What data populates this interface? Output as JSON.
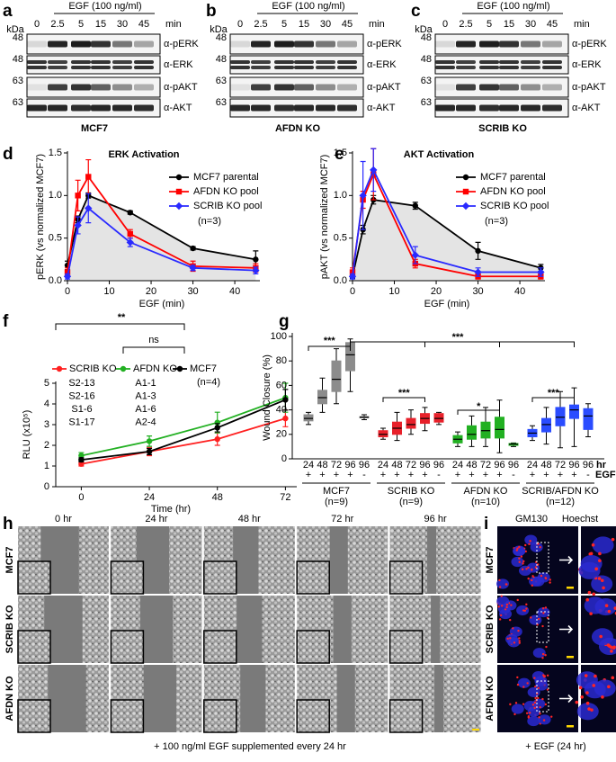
{
  "blots": [
    {
      "panel": "a",
      "treatment": "EGF (100 ng/ml)",
      "mw_unit": "kDa",
      "times": [
        "0",
        "2.5",
        "5",
        "15",
        "30",
        "45"
      ],
      "time_unit": "min",
      "markers": [
        "48",
        "48",
        "63",
        "63"
      ],
      "antibodies": [
        "α-pERK",
        "α-ERK",
        "α-pAKT",
        "α-AKT"
      ],
      "cell_line": "MCF7"
    },
    {
      "panel": "b",
      "treatment": "EGF (100 ng/ml)",
      "mw_unit": "kDa",
      "times": [
        "0",
        "2.5",
        "5",
        "15",
        "30",
        "45"
      ],
      "time_unit": "min",
      "markers": [
        "48",
        "48",
        "63",
        "63"
      ],
      "antibodies": [
        "α-pERK",
        "α-ERK",
        "α-pAKT",
        "α-AKT"
      ],
      "cell_line": "AFDN KO"
    },
    {
      "panel": "c",
      "treatment": "EGF (100 ng/ml)",
      "mw_unit": "kDa",
      "times": [
        "0",
        "2.5",
        "5",
        "15",
        "30",
        "45"
      ],
      "time_unit": "min",
      "markers": [
        "48",
        "48",
        "63",
        "63"
      ],
      "antibodies": [
        "α-pERK",
        "α-ERK",
        "α-pAKT",
        "α-AKT"
      ],
      "cell_line": "SCRIB KO"
    }
  ],
  "chart_data": [
    {
      "panel": "d",
      "type": "line",
      "title": "ERK Activation",
      "x_label": "EGF (min)",
      "y_label": "pERK (vs normalized MCF7)",
      "annotation": "(n=3)",
      "x": [
        0,
        2.5,
        5,
        15,
        30,
        45
      ],
      "xlim": [
        0,
        46
      ],
      "xticks": [
        0,
        10,
        20,
        30,
        40
      ],
      "ylim": [
        0,
        1.5
      ],
      "yticks": [
        {
          "value": 0,
          "label": "0.0"
        },
        {
          "value": 0.5,
          "label": "0.5"
        },
        {
          "value": 1,
          "label": "1.0"
        },
        {
          "value": 1.5,
          "label": "1.5"
        }
      ],
      "series": [
        {
          "name": "MCF7 parental",
          "color": "#000000",
          "marker": "circle",
          "area_color": "#e4e4e4",
          "values": [
            0.18,
            0.72,
            1.0,
            0.8,
            0.38,
            0.25
          ],
          "errors": [
            0.05,
            0.04,
            0.03,
            0.02,
            0.02,
            0.1
          ]
        },
        {
          "name": "AFDN KO pool",
          "color": "#ff0000",
          "marker": "square",
          "values": [
            0.1,
            1.0,
            1.22,
            0.55,
            0.17,
            0.15
          ],
          "errors": [
            0.05,
            0.18,
            0.2,
            0.05,
            0.06,
            0.05
          ]
        },
        {
          "name": "SCRIB KO pool",
          "color": "#2a2aff",
          "marker": "diamond",
          "values": [
            0.05,
            0.65,
            0.85,
            0.45,
            0.15,
            0.12
          ],
          "errors": [
            0.03,
            0.1,
            0.17,
            0.05,
            0.03,
            0.04
          ]
        }
      ]
    },
    {
      "panel": "e",
      "type": "line",
      "title": "AKT Activation",
      "x_label": "EGF (min)",
      "y_label": "pAKT (vs normalized MCF7)",
      "annotation": "(n=3)",
      "x": [
        0,
        2.5,
        5,
        15,
        30,
        45
      ],
      "xlim": [
        0,
        46
      ],
      "xticks": [
        0,
        10,
        20,
        30,
        40
      ],
      "ylim": [
        0,
        1.5
      ],
      "yticks": [
        {
          "value": 0,
          "label": "0.0"
        },
        {
          "value": 0.5,
          "label": "0.5"
        },
        {
          "value": 1,
          "label": "1.0"
        },
        {
          "value": 1.5,
          "label": "1.5"
        }
      ],
      "series": [
        {
          "name": "MCF7 parental",
          "color": "#000000",
          "marker": "circle",
          "area_color": "#e4e4e4",
          "values": [
            0.05,
            0.6,
            0.95,
            0.88,
            0.35,
            0.15
          ],
          "errors": [
            0.02,
            0.05,
            0.05,
            0.04,
            0.1,
            0.04
          ]
        },
        {
          "name": "AFDN KO pool",
          "color": "#ff0000",
          "marker": "square",
          "values": [
            0.1,
            0.95,
            1.25,
            0.2,
            0.05,
            0.05
          ],
          "errors": [
            0.05,
            0.1,
            0.3,
            0.05,
            0.03,
            0.03
          ]
        },
        {
          "name": "SCRIB KO pool",
          "color": "#2a2aff",
          "marker": "diamond",
          "values": [
            0.05,
            1.0,
            1.3,
            0.3,
            0.1,
            0.1
          ],
          "errors": [
            0.03,
            0.4,
            0.25,
            0.1,
            0.05,
            0.05
          ]
        }
      ]
    },
    {
      "panel": "f",
      "type": "line",
      "x_label": "Time (hr)",
      "y_label": "RLU (x10⁵)",
      "annotation": "(n=4)",
      "significance": [
        "**",
        "ns"
      ],
      "x": [
        0,
        24,
        48,
        72
      ],
      "xlim": [
        -9,
        76
      ],
      "xticks": [
        0,
        24,
        48,
        72
      ],
      "ylim": [
        0,
        5
      ],
      "yticks": [
        0,
        1,
        2,
        3,
        4,
        5
      ],
      "series": [
        {
          "name": "SCRIB KO",
          "color": "#ff2020",
          "marker": "circle",
          "clones": [
            "S2-13",
            "S2-16",
            "S1-6",
            "S1-17"
          ],
          "clone_color": "#8b1a1a",
          "values": [
            1.1,
            1.7,
            2.3,
            3.3
          ],
          "errors": [
            0.1,
            0.2,
            0.3,
            0.4
          ]
        },
        {
          "name": "AFDN KO",
          "color": "#22b022",
          "marker": "circle",
          "clones": [
            "A1-1",
            "A1-3",
            "A1-6",
            "A2-4"
          ],
          "clone_color": "#1a7a1a",
          "values": [
            1.5,
            2.2,
            3.1,
            4.3
          ],
          "errors": [
            0.15,
            0.25,
            0.5,
            0.7
          ]
        },
        {
          "name": "MCF7",
          "color": "#000000",
          "marker": "circle",
          "values": [
            1.3,
            1.7,
            2.85,
            4.2
          ],
          "errors": [
            0.1,
            0.15,
            0.2,
            0.5
          ]
        }
      ]
    },
    {
      "panel": "g",
      "type": "box",
      "y_label": "Wound Closure (%)",
      "categories": [
        "24",
        "48",
        "72",
        "96",
        "96"
      ],
      "egf": [
        "+",
        "+",
        "+",
        "+",
        "-"
      ],
      "x_unit": "hr",
      "treatment": "EGF",
      "ylim": [
        0,
        100
      ],
      "yticks": [
        0,
        20,
        40,
        60,
        80,
        100
      ],
      "significance": [
        "***",
        "***",
        "***",
        "*",
        "***"
      ],
      "series": [
        {
          "name": "MCF7",
          "n_label": "(n=9)",
          "color": "#8c8c8c",
          "boxes": [
            {
              "min": 28,
              "q1": 31,
              "median": 33,
              "q3": 36,
              "max": 38
            },
            {
              "min": 38,
              "q1": 45,
              "median": 50,
              "q3": 56,
              "max": 66
            },
            {
              "min": 45,
              "q1": 55,
              "median": 65,
              "q3": 80,
              "max": 90
            },
            {
              "min": 55,
              "q1": 72,
              "median": 85,
              "q3": 95,
              "max": 98
            },
            {
              "min": 32,
              "q1": 33.5,
              "median": 34,
              "q3": 34.5,
              "max": 36
            }
          ]
        },
        {
          "name": "SCRIB KO",
          "n_label": "(n=9)",
          "color": "#e8202a",
          "boxes": [
            {
              "min": 16,
              "q1": 18,
              "median": 20,
              "q3": 23,
              "max": 25
            },
            {
              "min": 15,
              "q1": 20,
              "median": 25,
              "q3": 30,
              "max": 38
            },
            {
              "min": 20,
              "q1": 25,
              "median": 28,
              "q3": 33,
              "max": 40
            },
            {
              "min": 23,
              "q1": 29,
              "median": 33,
              "q3": 37,
              "max": 42
            },
            {
              "min": 28,
              "q1": 30,
              "median": 33,
              "q3": 37,
              "max": 38
            }
          ]
        },
        {
          "name": "AFDN KO",
          "n_label": "(n=10)",
          "color": "#22b022",
          "boxes": [
            {
              "min": 10,
              "q1": 13,
              "median": 16,
              "q3": 19,
              "max": 22
            },
            {
              "min": 10,
              "q1": 16,
              "median": 20,
              "q3": 27,
              "max": 35
            },
            {
              "min": 10,
              "q1": 17,
              "median": 23,
              "q3": 30,
              "max": 42
            },
            {
              "min": 5,
              "q1": 17,
              "median": 24,
              "q3": 34,
              "max": 48
            },
            {
              "min": 10,
              "q1": 11,
              "median": 12,
              "q3": 12.5,
              "max": 13
            }
          ]
        },
        {
          "name": "SCRIB/AFDN KO",
          "n_label": "(n=12)",
          "color": "#2a4cff",
          "boxes": [
            {
              "min": 15,
              "q1": 18,
              "median": 21,
              "q3": 24,
              "max": 27
            },
            {
              "min": 12,
              "q1": 22,
              "median": 28,
              "q3": 33,
              "max": 42
            },
            {
              "min": 9,
              "q1": 27,
              "median": 34,
              "q3": 42,
              "max": 55
            },
            {
              "min": 10,
              "q1": 33,
              "median": 40,
              "q3": 44,
              "max": 58
            },
            {
              "min": 18,
              "q1": 24,
              "median": 35,
              "q3": 41,
              "max": 45
            }
          ]
        }
      ]
    }
  ],
  "micrographs": {
    "panel": "h",
    "timepoints": [
      "0 hr",
      "24 hr",
      "48 hr",
      "72 hr",
      "96 hr"
    ],
    "cell_lines": [
      "MCF7",
      "SCRIB KO",
      "AFDN KO"
    ],
    "caption": "+ 100 ng/ml EGF supplemented every 24 hr"
  },
  "immunofluorescence": {
    "panel": "i",
    "stains": [
      "GM130",
      "Hoechst"
    ],
    "stain_colors": [
      "#ff2020",
      "#3030ff"
    ],
    "cell_lines": [
      "MCF7",
      "SCRIB KO",
      "AFDN KO"
    ],
    "caption": "+ EGF (24 hr)"
  }
}
